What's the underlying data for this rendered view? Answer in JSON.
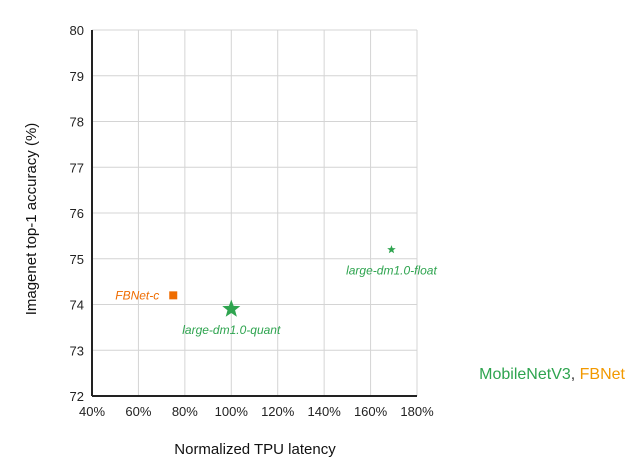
{
  "chart_data": {
    "type": "scatter",
    "title": "",
    "xlabel": "Normalized TPU latency",
    "ylabel": "Imagenet top-1 accuracy (%)",
    "xlim": [
      40,
      180
    ],
    "ylim": [
      72,
      80
    ],
    "x_ticks": [
      40,
      60,
      80,
      100,
      120,
      140,
      160,
      180
    ],
    "x_tick_labels": [
      "40%",
      "60%",
      "80%",
      "100%",
      "120%",
      "140%",
      "160%",
      "180%"
    ],
    "y_ticks": [
      72,
      73,
      74,
      75,
      76,
      77,
      78,
      79,
      80
    ],
    "y_tick_labels": [
      "72",
      "73",
      "74",
      "75",
      "76",
      "77",
      "78",
      "79",
      "80"
    ],
    "grid": true,
    "series": [
      {
        "name": "MobileNetV3",
        "color": "#2ea44f",
        "marker": "star",
        "points": [
          {
            "label": "large-dm1.0-quant",
            "x": 100,
            "y": 73.9,
            "size": "large"
          },
          {
            "label": "large-dm1.0-float",
            "x": 169,
            "y": 75.2,
            "size": "small"
          }
        ]
      },
      {
        "name": "FBNet",
        "color": "#ef6c00",
        "marker": "square",
        "points": [
          {
            "label": "FBNet-c",
            "x": 75,
            "y": 74.2,
            "size": "medium"
          }
        ]
      }
    ],
    "legend": {
      "placement": "bottom-right",
      "items": [
        {
          "text": "MobileNetV3",
          "color": "#2ea44f"
        },
        {
          "text": ", ",
          "color": "#333333"
        },
        {
          "text": "FBNet",
          "color": "#f29900"
        }
      ]
    }
  }
}
